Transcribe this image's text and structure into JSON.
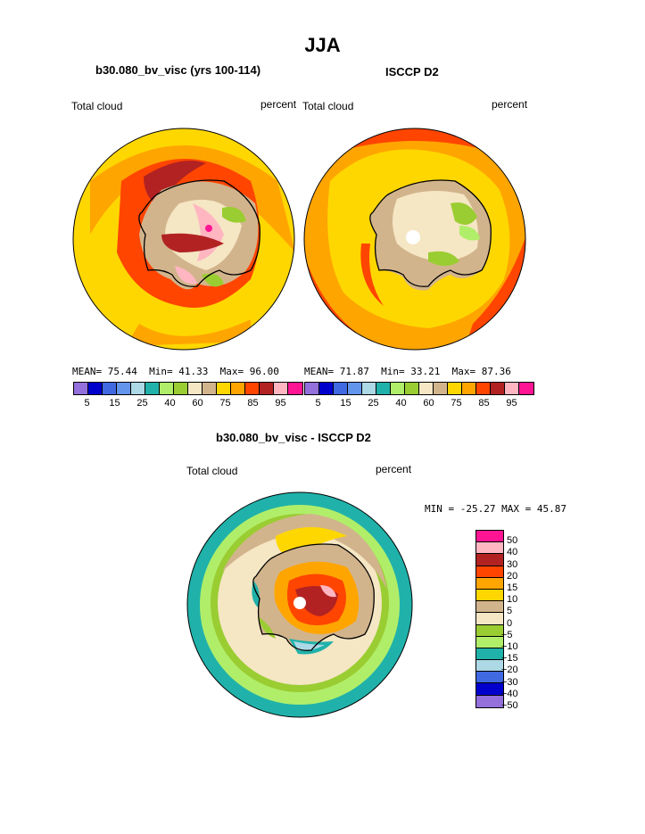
{
  "title": "JJA",
  "panels": [
    {
      "title": "b30.080_bv_visc (yrs 100-114)",
      "left_label": "Total cloud",
      "right_label": "percent",
      "stats": {
        "mean_label": "MEAN=",
        "mean": "75.44",
        "min_label": "Min=",
        "min": "41.33",
        "max_label": "Max=",
        "max": "96.00"
      }
    },
    {
      "title": "ISCCP D2",
      "left_label": "Total cloud",
      "right_label": "percent",
      "stats": {
        "mean_label": "MEAN=",
        "mean": "71.87",
        "min_label": "Min=",
        "min": "33.21",
        "max_label": "Max=",
        "max": "87.36"
      }
    }
  ],
  "colorbar_abs": {
    "colors": [
      "#9370db",
      "#0000cd",
      "#4169e1",
      "#6495ed",
      "#add8e6",
      "#20b2aa",
      "#b0ee6a",
      "#9acd32",
      "#f5e6c4",
      "#d2b48c",
      "#ffd700",
      "#ffa500",
      "#ff4500",
      "#b22222",
      "#ffb6c1",
      "#ff1493"
    ],
    "tick_labels": [
      "5",
      "15",
      "25",
      "40",
      "60",
      "75",
      "85",
      "95"
    ]
  },
  "diff_panel": {
    "title": "b30.080_bv_visc - ISCCP D2",
    "left_label": "Total cloud",
    "right_label": "percent",
    "stats_text": "MIN = -25.27 MAX =  45.87",
    "colorbar": {
      "colors": [
        "#ff1493",
        "#ffb6c1",
        "#b22222",
        "#ff4500",
        "#ffa500",
        "#ffd700",
        "#d2b48c",
        "#f5e6c4",
        "#9acd32",
        "#b0ee6a",
        "#20b2aa",
        "#add8e6",
        "#4169e1",
        "#0000cd",
        "#9370db"
      ],
      "labels": [
        "50",
        "40",
        "30",
        "20",
        "15",
        "10",
        "5",
        "0",
        "−5",
        "−10",
        "−15",
        "−20",
        "−30",
        "−40",
        "−50"
      ]
    }
  }
}
